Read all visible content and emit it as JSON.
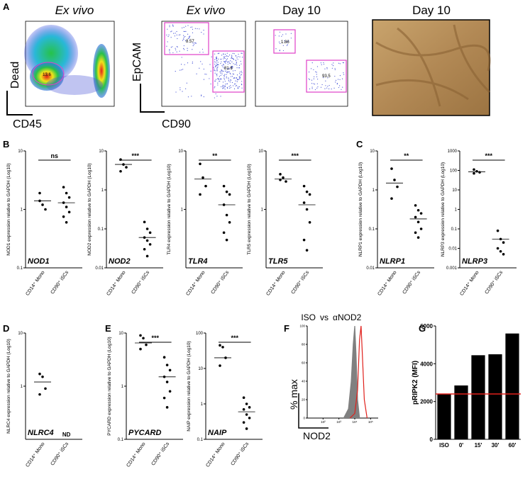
{
  "figure": {
    "panel_labels": [
      "A",
      "B",
      "C",
      "D",
      "E",
      "F",
      "G"
    ],
    "panel_a": {
      "titles": [
        "Ex vivo",
        "Ex vivo",
        "Day 10",
        "Day 10"
      ],
      "axis_labels": [
        "Dead",
        "CD45",
        "EpCAM",
        "CD90"
      ],
      "gates": [
        "13.6",
        "8.57",
        "81.6",
        "1.86",
        "93.5"
      ]
    }
  },
  "chart_data": [
    {
      "type": "strip",
      "gene": "NOD1",
      "ylabel": "NOD1 expression relative to GAPDH (Log10)",
      "categories": [
        "CD14⁺ Mono",
        "CD90⁺ iSCs"
      ],
      "significance": "ns",
      "log": true,
      "ylim": [
        0.1,
        10
      ],
      "yticks": [
        0.1,
        1,
        10
      ],
      "groups": [
        {
          "values": [
            1.9,
            1.2,
            1.0,
            1.4
          ],
          "mean": 1.4
        },
        {
          "values": [
            2.4,
            1.9,
            1.6,
            1.3,
            1.1,
            0.9,
            0.75,
            0.6
          ],
          "mean": 1.3
        }
      ]
    },
    {
      "type": "strip",
      "gene": "NOD2",
      "ylabel": "NOD2 expression relative to GAPDH (Log10)",
      "categories": [
        "CD14⁺ Mono",
        "CD90⁺ iSCs"
      ],
      "significance": "***",
      "log": true,
      "ylim": [
        0.01,
        10
      ],
      "yticks": [
        0.01,
        0.1,
        1,
        10
      ],
      "groups": [
        {
          "values": [
            6,
            4.5,
            3.8,
            3
          ],
          "mean": 4.5
        },
        {
          "values": [
            0.15,
            0.1,
            0.08,
            0.06,
            0.05,
            0.04,
            0.03,
            0.02
          ],
          "mean": 0.06
        }
      ]
    },
    {
      "type": "strip",
      "gene": "TLR4",
      "ylabel": "TLR4 expression relative to GAPDH (Log10)",
      "categories": [
        "CD14⁺ Mono",
        "CD90⁺ iSCs"
      ],
      "significance": "**",
      "log": true,
      "ylim": [
        0.1,
        10
      ],
      "yticks": [
        1,
        10
      ],
      "groups": [
        {
          "values": [
            6,
            3.5,
            2.5,
            1.8
          ],
          "mean": 3.3
        },
        {
          "values": [
            2.5,
            2,
            1.8,
            1.2,
            0.8,
            0.6,
            0.4,
            0.3
          ],
          "mean": 1.2
        }
      ]
    },
    {
      "type": "strip",
      "gene": "TLR5",
      "ylabel": "TLR5 expression relative to GAPDH (Log10)",
      "categories": [
        "CD14⁺ Mono",
        "CD90⁺ iSCs"
      ],
      "significance": "***",
      "log": true,
      "ylim": [
        0.1,
        10
      ],
      "yticks": [
        1,
        10
      ],
      "groups": [
        {
          "values": [
            4,
            3.5,
            3,
            3.2
          ],
          "mean": 3.3
        },
        {
          "values": [
            2.5,
            2,
            1.8,
            1.3,
            1,
            0.6,
            0.3,
            0.2
          ],
          "mean": 1.2
        }
      ]
    },
    {
      "type": "strip",
      "gene": "NLRP1",
      "ylabel": "NLRP1 expression relative to GAPDH (Log10)",
      "categories": [
        "CD14⁺ Mono",
        "CD90⁺ iSCs"
      ],
      "significance": "**",
      "log": true,
      "ylim": [
        0.01,
        10
      ],
      "yticks": [
        0.01,
        0.1,
        1,
        10
      ],
      "groups": [
        {
          "values": [
            3.5,
            1.8,
            1.2,
            0.6
          ],
          "mean": 1.5
        },
        {
          "values": [
            0.4,
            0.3,
            0.25,
            0.2,
            0.15,
            0.1,
            0.08,
            0.06
          ],
          "mean": 0.18
        }
      ]
    },
    {
      "type": "strip",
      "gene": "NLRP3",
      "ylabel": "NLRP3 expression relative to GAPDH (Log10)",
      "categories": [
        "CD14⁺ Mono",
        "CD90⁺ iSCs"
      ],
      "significance": "***",
      "log": true,
      "ylim": [
        0.001,
        1000
      ],
      "yticks": [
        0.001,
        0.01,
        0.1,
        1,
        10,
        100,
        1000
      ],
      "groups": [
        {
          "values": [
            110,
            90,
            80,
            70
          ],
          "mean": 85
        },
        {
          "values": [
            0.08,
            0.03,
            0.02,
            0.01,
            0.007,
            0.005
          ],
          "mean": 0.03
        }
      ]
    },
    {
      "type": "strip",
      "gene": "NLRC4",
      "ylabel": "NLRC4 expression relative to GAPDH (Log10)",
      "categories": [
        "CD14⁺ Mono",
        "CD90⁺ iSCs"
      ],
      "annotation": "ND",
      "log": true,
      "ylim": [
        0.1,
        10
      ],
      "yticks": [
        1,
        10
      ],
      "groups": [
        {
          "values": [
            1.7,
            1.5,
            0.9,
            0.7
          ],
          "mean": 1.2
        },
        {
          "values": []
        }
      ]
    },
    {
      "type": "strip",
      "gene": "PYCARD",
      "ylabel": "PYCARD expression relative to GAPDH (Log10)",
      "categories": [
        "CD14⁺ Mono",
        "CD90⁺ iSCs"
      ],
      "significance": "***",
      "log": true,
      "ylim": [
        0.1,
        10
      ],
      "yticks": [
        0.1,
        1,
        10
      ],
      "groups": [
        {
          "values": [
            9,
            8,
            6,
            5
          ],
          "mean": 6.5
        },
        {
          "values": [
            3.5,
            2.5,
            2,
            1.5,
            1.2,
            0.8,
            0.6,
            0.4
          ],
          "mean": 1.5
        }
      ]
    },
    {
      "type": "strip",
      "gene": "NAIP",
      "ylabel": "NAIP expression relative to GAPDH (Log10)",
      "categories": [
        "CD14⁺ Mono",
        "CD90⁺ iSCs"
      ],
      "significance": "***",
      "log": true,
      "ylim": [
        0.1,
        100
      ],
      "yticks": [
        0.1,
        1,
        10,
        100
      ],
      "groups": [
        {
          "values": [
            45,
            40,
            20,
            12
          ],
          "mean": 20
        },
        {
          "values": [
            1.5,
            1,
            0.8,
            0.7,
            0.5,
            0.4,
            0.3,
            0.2
          ],
          "mean": 0.6
        }
      ]
    },
    {
      "type": "histogram-overlay",
      "legend_joiner": "vs",
      "xlabel": "NOD2",
      "ylabel": "% max",
      "xlog": true,
      "xlim": [
        10,
        300000
      ],
      "xticks": [
        {
          "value": 100,
          "label": "10²"
        },
        {
          "value": 1000,
          "label": "10³"
        },
        {
          "value": 10000,
          "label": "10⁴"
        },
        {
          "value": 100000,
          "label": "10⁵"
        }
      ],
      "ylim": [
        0,
        100
      ],
      "yticks": [
        0,
        20,
        40,
        60,
        80,
        100
      ],
      "series": [
        {
          "name": "ISO",
          "color": "#808080",
          "x": [
            2000,
            4000,
            6000,
            8000,
            10000,
            12000,
            15000,
            20000
          ],
          "values": [
            0,
            10,
            40,
            80,
            100,
            70,
            20,
            0
          ]
        },
        {
          "name": "αNOD2",
          "color": "#e0201b",
          "x": [
            5000,
            10000,
            15000,
            20000,
            25000,
            30000,
            40000,
            60000
          ],
          "values": [
            0,
            5,
            30,
            85,
            100,
            70,
            20,
            0
          ]
        }
      ]
    },
    {
      "type": "bar",
      "ylabel": "pRIPK2 (MFI)",
      "categories": [
        "ISO",
        "0'",
        "15'",
        "30'",
        "60'"
      ],
      "values": [
        2400,
        2850,
        4450,
        4500,
        5600
      ],
      "color": "#000000",
      "ylim": [
        0,
        6000
      ],
      "yticks": [
        0,
        2000,
        4000,
        6000
      ],
      "reference_line": {
        "value": 2400,
        "color": "#e0201b"
      }
    }
  ]
}
